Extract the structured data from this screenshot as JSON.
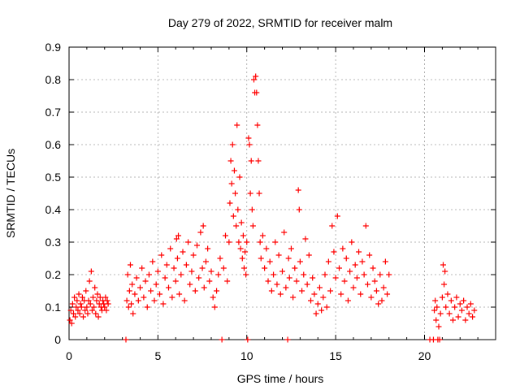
{
  "chart_data": {
    "type": "scatter",
    "title": "Day 279 of 2022, SRMTID for receiver malm",
    "xlabel": "GPS time / hours",
    "ylabel": "SRMTID / TECUs",
    "xlim": [
      0,
      24
    ],
    "ylim": [
      0,
      0.9
    ],
    "x_ticks": [
      0,
      5,
      10,
      15,
      20
    ],
    "y_ticks": [
      0,
      0.1,
      0.2,
      0.3,
      0.4,
      0.5,
      0.6,
      0.7,
      0.8,
      0.9
    ],
    "x_tick_labels": [
      "0",
      "5",
      "10",
      "15",
      "20"
    ],
    "y_tick_labels": [
      "0",
      "0.1",
      "0.2",
      "0.3",
      "0.4",
      "0.5",
      "0.6",
      "0.7",
      "0.8",
      "0.9"
    ],
    "grid": true,
    "marker": "+",
    "series": [
      {
        "name": "SRMTID",
        "color": "#ff0000",
        "points": [
          [
            0.05,
            0.06
          ],
          [
            0.1,
            0.09
          ],
          [
            0.15,
            0.05
          ],
          [
            0.2,
            0.11
          ],
          [
            0.25,
            0.08
          ],
          [
            0.3,
            0.13
          ],
          [
            0.35,
            0.07
          ],
          [
            0.4,
            0.1
          ],
          [
            0.45,
            0.12
          ],
          [
            0.5,
            0.09
          ],
          [
            0.55,
            0.14
          ],
          [
            0.6,
            0.08
          ],
          [
            0.65,
            0.11
          ],
          [
            0.7,
            0.1
          ],
          [
            0.75,
            0.13
          ],
          [
            0.8,
            0.07
          ],
          [
            0.85,
            0.12
          ],
          [
            0.9,
            0.09
          ],
          [
            0.95,
            0.15
          ],
          [
            1.0,
            0.1
          ],
          [
            1.05,
            0.08
          ],
          [
            1.1,
            0.12
          ],
          [
            1.15,
            0.18
          ],
          [
            1.2,
            0.11
          ],
          [
            1.25,
            0.21
          ],
          [
            1.3,
            0.09
          ],
          [
            1.35,
            0.13
          ],
          [
            1.4,
            0.1
          ],
          [
            1.45,
            0.16
          ],
          [
            1.5,
            0.08
          ],
          [
            1.55,
            0.12
          ],
          [
            1.6,
            0.14
          ],
          [
            1.65,
            0.07
          ],
          [
            1.7,
            0.11
          ],
          [
            1.75,
            0.13
          ],
          [
            1.8,
            0.1
          ],
          [
            1.85,
            0.09
          ],
          [
            1.9,
            0.12
          ],
          [
            1.95,
            0.11
          ],
          [
            2.0,
            0.1
          ],
          [
            2.05,
            0.13
          ],
          [
            2.1,
            0.09
          ],
          [
            2.15,
            0.12
          ],
          [
            2.2,
            0.11
          ],
          [
            3.2,
            0.0
          ],
          [
            3.25,
            0.12
          ],
          [
            3.3,
            0.2
          ],
          [
            3.35,
            0.1
          ],
          [
            3.4,
            0.15
          ],
          [
            3.45,
            0.23
          ],
          [
            3.5,
            0.11
          ],
          [
            3.55,
            0.17
          ],
          [
            3.6,
            0.08
          ],
          [
            3.7,
            0.14
          ],
          [
            3.8,
            0.19
          ],
          [
            3.9,
            0.12
          ],
          [
            4.0,
            0.16
          ],
          [
            4.1,
            0.22
          ],
          [
            4.2,
            0.13
          ],
          [
            4.3,
            0.18
          ],
          [
            4.4,
            0.1
          ],
          [
            4.5,
            0.2
          ],
          [
            4.6,
            0.15
          ],
          [
            4.7,
            0.24
          ],
          [
            4.8,
            0.12
          ],
          [
            4.9,
            0.17
          ],
          [
            5.0,
            0.21
          ],
          [
            5.1,
            0.14
          ],
          [
            5.2,
            0.26
          ],
          [
            5.3,
            0.11
          ],
          [
            5.4,
            0.19
          ],
          [
            5.5,
            0.23
          ],
          [
            5.6,
            0.16
          ],
          [
            5.7,
            0.28
          ],
          [
            5.8,
            0.13
          ],
          [
            5.9,
            0.22
          ],
          [
            6.0,
            0.18
          ],
          [
            6.05,
            0.31
          ],
          [
            6.1,
            0.25
          ],
          [
            6.15,
            0.32
          ],
          [
            6.2,
            0.14
          ],
          [
            6.3,
            0.2
          ],
          [
            6.4,
            0.27
          ],
          [
            6.5,
            0.12
          ],
          [
            6.6,
            0.23
          ],
          [
            6.7,
            0.3
          ],
          [
            6.8,
            0.17
          ],
          [
            6.9,
            0.21
          ],
          [
            7.0,
            0.26
          ],
          [
            7.1,
            0.15
          ],
          [
            7.2,
            0.29
          ],
          [
            7.3,
            0.19
          ],
          [
            7.4,
            0.33
          ],
          [
            7.5,
            0.22
          ],
          [
            7.55,
            0.35
          ],
          [
            7.6,
            0.16
          ],
          [
            7.7,
            0.24
          ],
          [
            7.8,
            0.28
          ],
          [
            7.9,
            0.18
          ],
          [
            8.0,
            0.21
          ],
          [
            8.1,
            0.13
          ],
          [
            8.2,
            0.1
          ],
          [
            8.3,
            0.15
          ],
          [
            8.4,
            0.2
          ],
          [
            8.5,
            0.25
          ],
          [
            8.6,
            0.0
          ],
          [
            8.7,
            0.22
          ],
          [
            8.8,
            0.32
          ],
          [
            8.9,
            0.18
          ],
          [
            9.0,
            0.3
          ],
          [
            9.05,
            0.42
          ],
          [
            9.1,
            0.55
          ],
          [
            9.15,
            0.48
          ],
          [
            9.2,
            0.6
          ],
          [
            9.25,
            0.38
          ],
          [
            9.3,
            0.52
          ],
          [
            9.35,
            0.45
          ],
          [
            9.4,
            0.35
          ],
          [
            9.45,
            0.66
          ],
          [
            9.5,
            0.4
          ],
          [
            9.55,
            0.3
          ],
          [
            9.6,
            0.5
          ],
          [
            9.65,
            0.28
          ],
          [
            9.7,
            0.36
          ],
          [
            9.75,
            0.25
          ],
          [
            9.8,
            0.32
          ],
          [
            9.85,
            0.22
          ],
          [
            9.9,
            0.27
          ],
          [
            9.95,
            0.2
          ],
          [
            10.0,
            0.3
          ],
          [
            10.05,
            0.0
          ],
          [
            10.1,
            0.62
          ],
          [
            10.15,
            0.6
          ],
          [
            10.2,
            0.45
          ],
          [
            10.25,
            0.55
          ],
          [
            10.3,
            0.4
          ],
          [
            10.35,
            0.35
          ],
          [
            10.4,
            0.8
          ],
          [
            10.45,
            0.76
          ],
          [
            10.5,
            0.81
          ],
          [
            10.55,
            0.76
          ],
          [
            10.6,
            0.66
          ],
          [
            10.65,
            0.55
          ],
          [
            10.7,
            0.45
          ],
          [
            10.75,
            0.3
          ],
          [
            10.8,
            0.25
          ],
          [
            10.9,
            0.32
          ],
          [
            11.0,
            0.22
          ],
          [
            11.1,
            0.28
          ],
          [
            11.2,
            0.18
          ],
          [
            11.3,
            0.24
          ],
          [
            11.4,
            0.15
          ],
          [
            11.5,
            0.2
          ],
          [
            11.6,
            0.3
          ],
          [
            11.7,
            0.17
          ],
          [
            11.8,
            0.26
          ],
          [
            11.9,
            0.14
          ],
          [
            12.0,
            0.21
          ],
          [
            12.1,
            0.33
          ],
          [
            12.2,
            0.16
          ],
          [
            12.3,
            0.0
          ],
          [
            12.35,
            0.25
          ],
          [
            12.4,
            0.19
          ],
          [
            12.5,
            0.28
          ],
          [
            12.6,
            0.13
          ],
          [
            12.7,
            0.22
          ],
          [
            12.8,
            0.18
          ],
          [
            12.9,
            0.46
          ],
          [
            12.95,
            0.4
          ],
          [
            13.0,
            0.24
          ],
          [
            13.1,
            0.15
          ],
          [
            13.2,
            0.2
          ],
          [
            13.3,
            0.31
          ],
          [
            13.4,
            0.17
          ],
          [
            13.5,
            0.26
          ],
          [
            13.6,
            0.12
          ],
          [
            13.7,
            0.19
          ],
          [
            13.8,
            0.14
          ],
          [
            13.9,
            0.08
          ],
          [
            14.0,
            0.11
          ],
          [
            14.1,
            0.16
          ],
          [
            14.2,
            0.09
          ],
          [
            14.3,
            0.13
          ],
          [
            14.4,
            0.2
          ],
          [
            14.5,
            0.1
          ],
          [
            14.6,
            0.24
          ],
          [
            14.7,
            0.15
          ],
          [
            14.8,
            0.35
          ],
          [
            14.9,
            0.27
          ],
          [
            15.0,
            0.19
          ],
          [
            15.1,
            0.38
          ],
          [
            15.2,
            0.22
          ],
          [
            15.3,
            0.14
          ],
          [
            15.4,
            0.28
          ],
          [
            15.5,
            0.18
          ],
          [
            15.6,
            0.25
          ],
          [
            15.7,
            0.12
          ],
          [
            15.8,
            0.21
          ],
          [
            15.9,
            0.3
          ],
          [
            16.0,
            0.16
          ],
          [
            16.1,
            0.23
          ],
          [
            16.2,
            0.19
          ],
          [
            16.3,
            0.27
          ],
          [
            16.4,
            0.14
          ],
          [
            16.5,
            0.24
          ],
          [
            16.6,
            0.2
          ],
          [
            16.7,
            0.35
          ],
          [
            16.8,
            0.17
          ],
          [
            16.9,
            0.26
          ],
          [
            17.0,
            0.13
          ],
          [
            17.1,
            0.22
          ],
          [
            17.2,
            0.18
          ],
          [
            17.3,
            0.15
          ],
          [
            17.4,
            0.11
          ],
          [
            17.5,
            0.2
          ],
          [
            17.6,
            0.12
          ],
          [
            17.7,
            0.16
          ],
          [
            17.8,
            0.24
          ],
          [
            17.9,
            0.14
          ],
          [
            18.0,
            0.2
          ],
          [
            20.3,
            0.0
          ],
          [
            20.5,
            0.0
          ],
          [
            20.55,
            0.09
          ],
          [
            20.6,
            0.12
          ],
          [
            20.65,
            0.06
          ],
          [
            20.7,
            0.1
          ],
          [
            20.75,
            0.0
          ],
          [
            20.8,
            0.04
          ],
          [
            20.85,
            0.0
          ],
          [
            20.9,
            0.08
          ],
          [
            21.0,
            0.13
          ],
          [
            21.05,
            0.23
          ],
          [
            21.1,
            0.17
          ],
          [
            21.15,
            0.21
          ],
          [
            21.2,
            0.1
          ],
          [
            21.3,
            0.14
          ],
          [
            21.4,
            0.08
          ],
          [
            21.5,
            0.12
          ],
          [
            21.6,
            0.06
          ],
          [
            21.7,
            0.1
          ],
          [
            21.8,
            0.13
          ],
          [
            21.9,
            0.07
          ],
          [
            22.0,
            0.11
          ],
          [
            22.1,
            0.09
          ],
          [
            22.2,
            0.12
          ],
          [
            22.3,
            0.06
          ],
          [
            22.4,
            0.1
          ],
          [
            22.5,
            0.08
          ],
          [
            22.6,
            0.11
          ],
          [
            22.7,
            0.07
          ],
          [
            22.8,
            0.09
          ]
        ]
      }
    ]
  }
}
